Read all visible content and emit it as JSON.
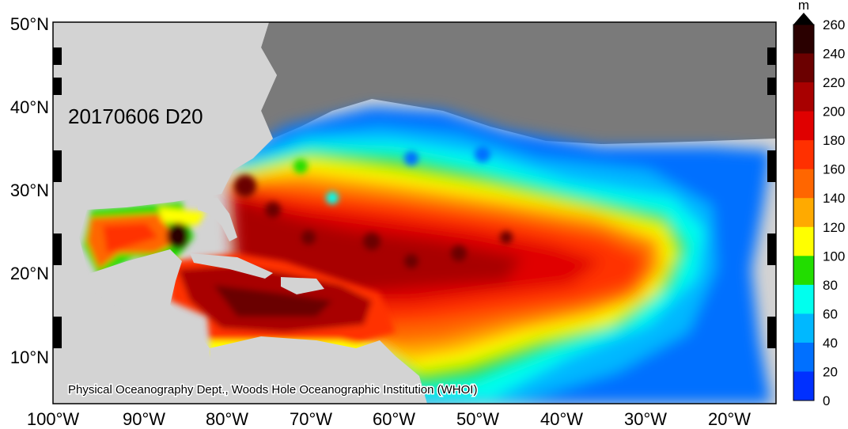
{
  "map": {
    "date_label": "20170606 D20",
    "credit": "Physical Oceanography Dept., Woods Hole Oceanographic Institution (WHOI)",
    "lat_labels": [
      "50°N",
      "40°N",
      "30°N",
      "20°N",
      "10°N"
    ],
    "lon_labels": [
      "100°W",
      "90°W",
      "80°W",
      "70°W",
      "60°W",
      "50°W",
      "40°W",
      "30°W",
      "20°W"
    ]
  },
  "colorbar": {
    "unit": "m",
    "labels": [
      "260",
      "240",
      "220",
      "200",
      "180",
      "160",
      "140",
      "120",
      "100",
      "80",
      "60",
      "40",
      "20",
      "0"
    ],
    "colors": [
      "#2a0000",
      "#6b0000",
      "#a80000",
      "#e00000",
      "#ff3000",
      "#ff6600",
      "#ffaa00",
      "#ffff00",
      "#22dd00",
      "#00ffee",
      "#00b8ff",
      "#0070ff",
      "#0030ff",
      "#0000c0"
    ]
  },
  "colors": {
    "land_light": "#d3d3d3",
    "land_dark": "#7a7a7a"
  }
}
